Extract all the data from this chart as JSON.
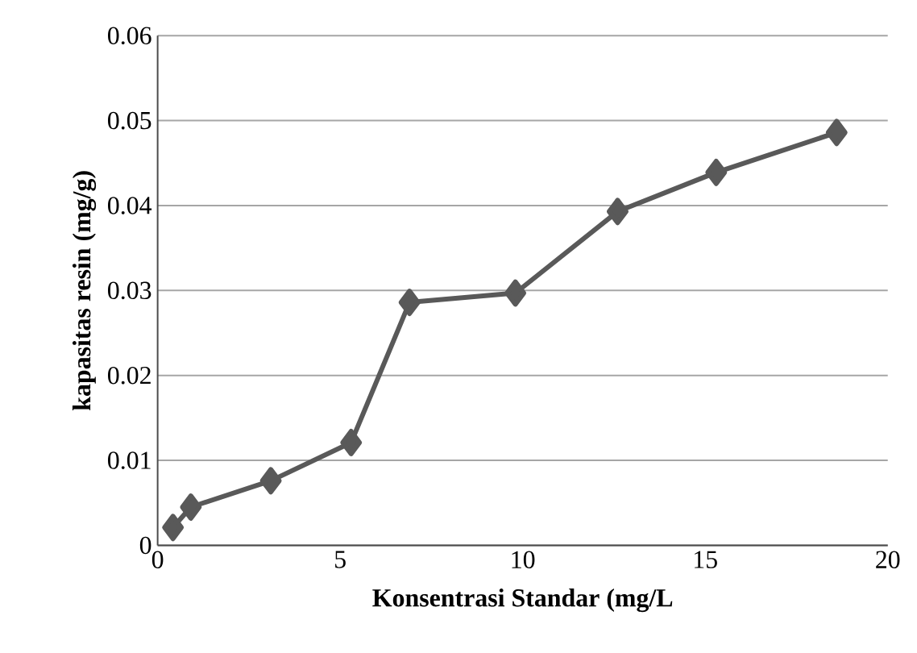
{
  "chart_data": {
    "type": "line",
    "xlabel": "Konsentrasi Standar (mg/L",
    "ylabel": "kapasitas resin (mg/g)",
    "x": [
      0.42,
      0.91,
      3.1,
      5.3,
      6.9,
      9.8,
      12.6,
      15.3,
      18.6
    ],
    "values": [
      0.0021,
      0.0045,
      0.0076,
      0.0121,
      0.0286,
      0.0297,
      0.0393,
      0.0439,
      0.0486
    ],
    "color": "#595959",
    "marker": "diamond",
    "line_style": "solid",
    "grid": "y",
    "xlim": [
      0,
      20
    ],
    "xticks": [
      0,
      5,
      10,
      15,
      20
    ],
    "ylim": [
      0,
      0.06
    ],
    "yticks": [
      0,
      0.01,
      0.02,
      0.03,
      0.04,
      0.05,
      0.06
    ]
  }
}
